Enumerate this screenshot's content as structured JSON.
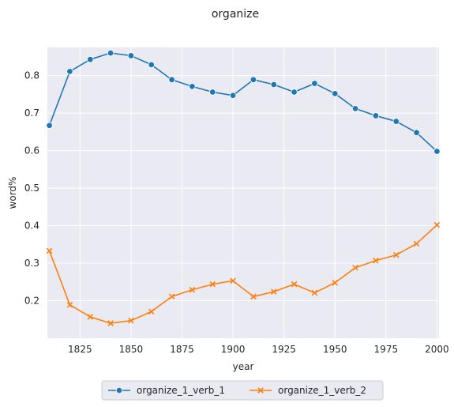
{
  "chart_data": {
    "type": "line",
    "title": "organize",
    "xlabel": "year",
    "ylabel": "word%",
    "xlim": [
      1809,
      2001
    ],
    "ylim": [
      0.1,
      0.875
    ],
    "x_ticks": [
      1825,
      1850,
      1875,
      1900,
      1925,
      1950,
      1975,
      2000
    ],
    "y_ticks": [
      0.2,
      0.3,
      0.4,
      0.5,
      0.6,
      0.7,
      0.8
    ],
    "grid": true,
    "legend_position": "bottom-center",
    "x": [
      1810,
      1820,
      1830,
      1840,
      1850,
      1860,
      1870,
      1880,
      1890,
      1900,
      1910,
      1920,
      1930,
      1940,
      1950,
      1960,
      1970,
      1980,
      1990,
      2000
    ],
    "series": [
      {
        "name": "organize_1_verb_1",
        "color": "#1f77b4",
        "marker": "circle",
        "values": [
          0.667,
          0.811,
          0.843,
          0.86,
          0.853,
          0.829,
          0.789,
          0.771,
          0.756,
          0.747,
          0.789,
          0.776,
          0.756,
          0.779,
          0.752,
          0.712,
          0.693,
          0.678,
          0.648,
          0.598
        ]
      },
      {
        "name": "organize_1_verb_2",
        "color": "#ff7f0e",
        "marker": "x",
        "values": [
          0.333,
          0.189,
          0.157,
          0.14,
          0.147,
          0.171,
          0.211,
          0.229,
          0.244,
          0.253,
          0.211,
          0.224,
          0.244,
          0.221,
          0.248,
          0.288,
          0.307,
          0.322,
          0.352,
          0.402
        ]
      }
    ]
  }
}
